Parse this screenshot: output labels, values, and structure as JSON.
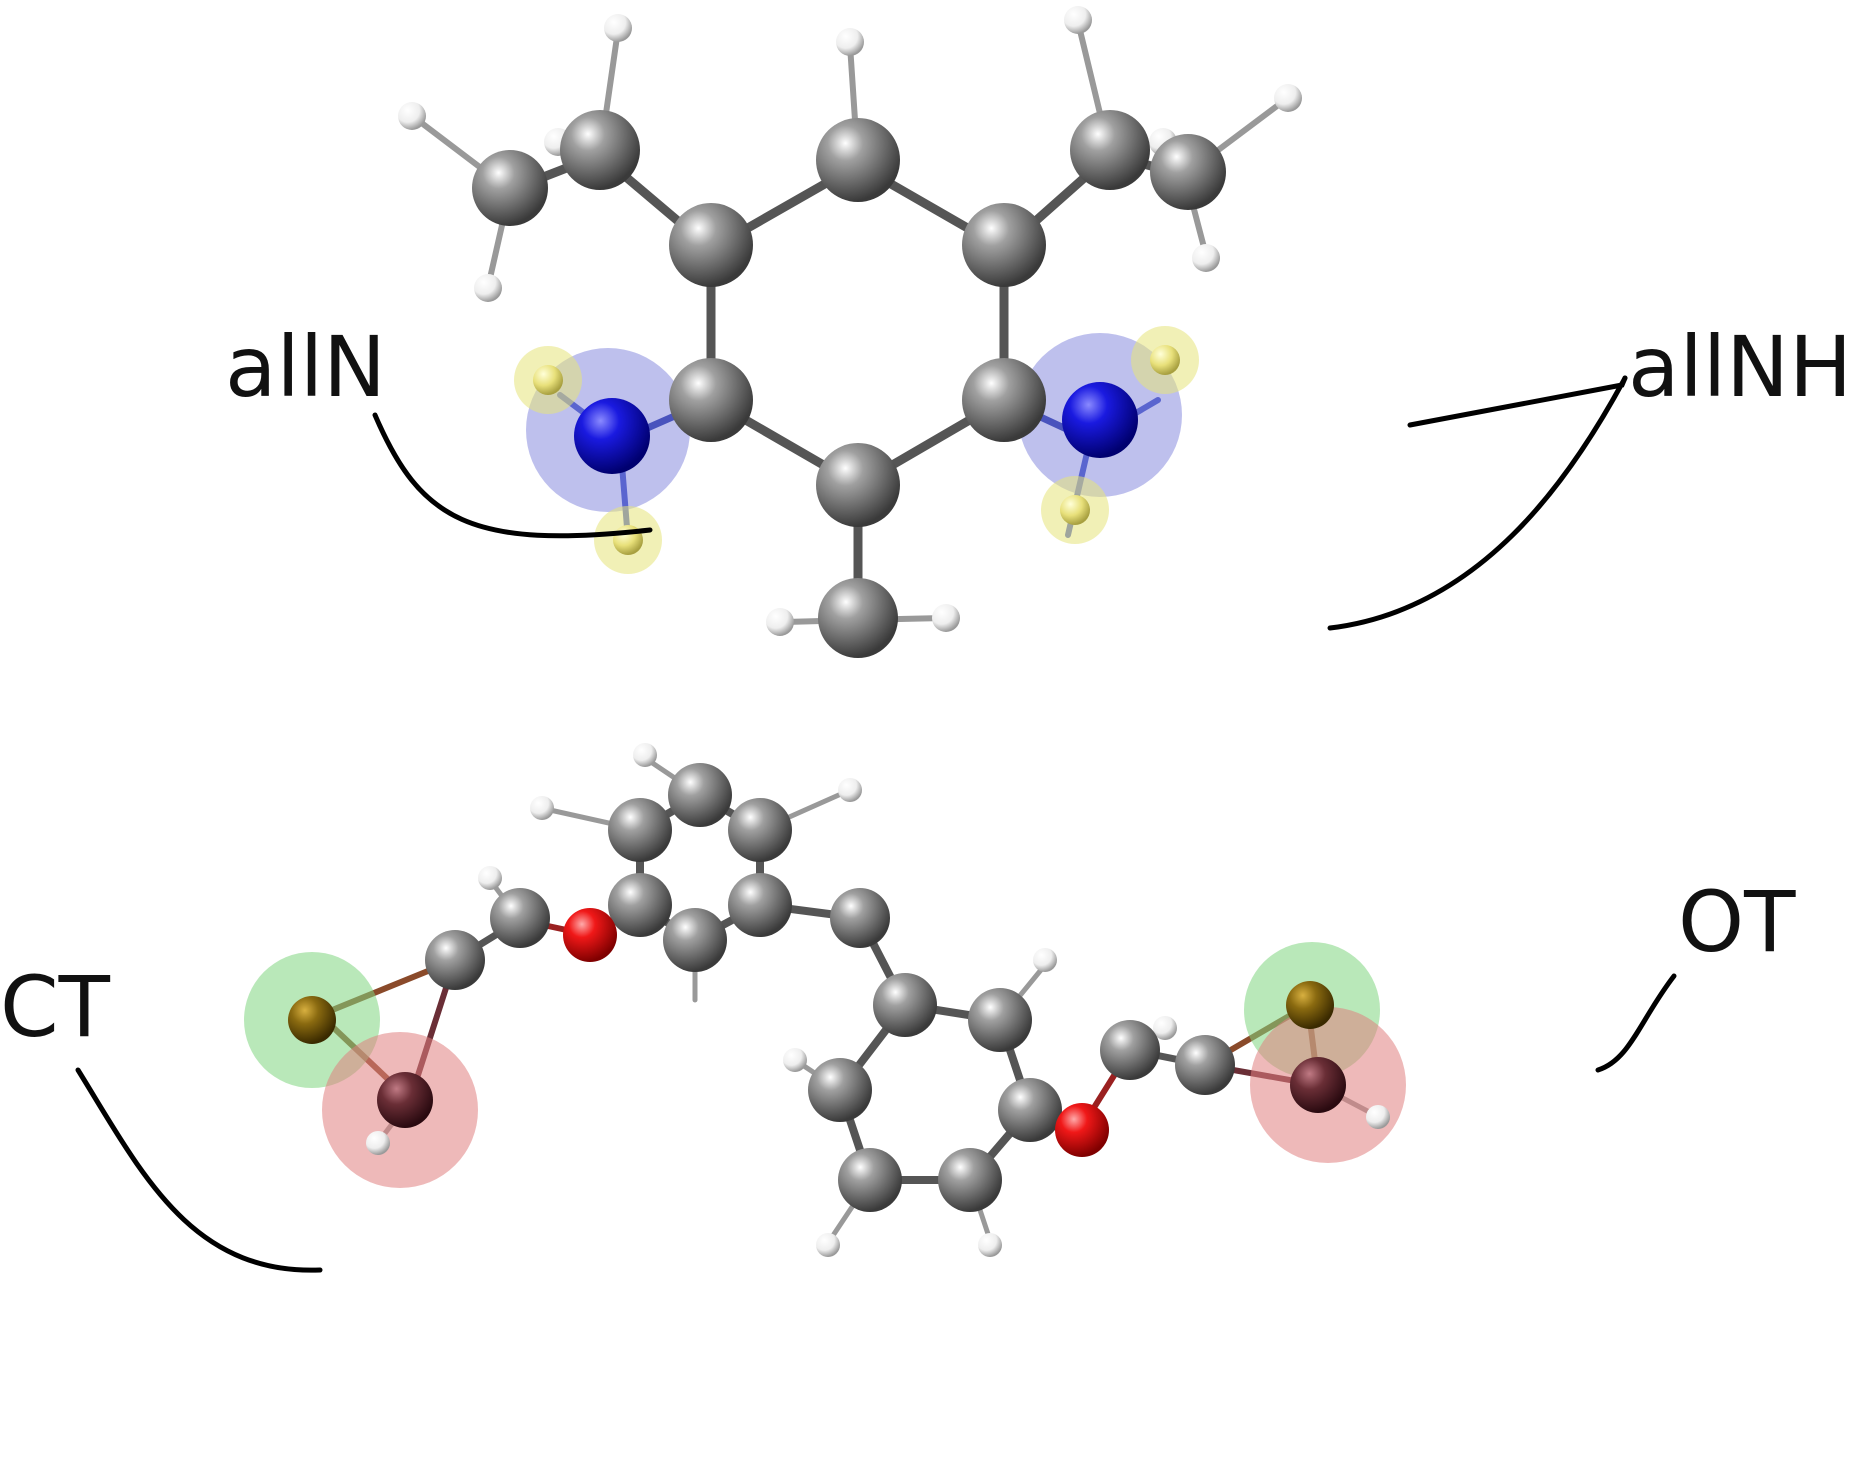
{
  "labels": {
    "allN": "allN",
    "allNH": "allNH",
    "CT": "CT",
    "OT": "OT"
  },
  "colors": {
    "carbon": "#7a7a7a",
    "hydrogen": "#f2f2f2",
    "nitrogen": "#1a1ad6",
    "oxygen": "#e21a1a",
    "selected_hydrogen": "#e8e07a",
    "ct_atom": "#8a6a10",
    "ot_atom": "#6a2e36",
    "highlight_blue": "#6f74d8",
    "highlight_yellow": "#e6e37a",
    "highlight_green": "#7fd67f",
    "highlight_red": "#e07f7f",
    "bond_n": "#2a3aa8",
    "bond_o": "#9a2020",
    "bond_ct": "#8a4a2a"
  }
}
